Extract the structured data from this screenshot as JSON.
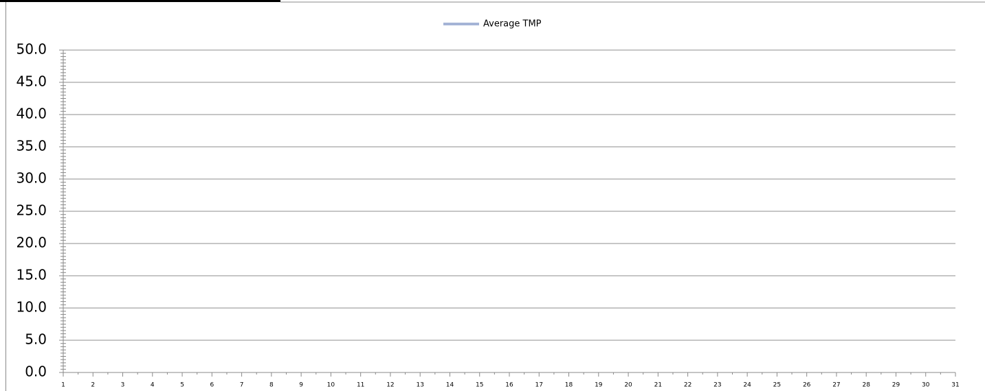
{
  "chart_data": {
    "type": "line",
    "categories": [
      "1",
      "2",
      "3",
      "4",
      "5",
      "6",
      "7",
      "8",
      "9",
      "10",
      "11",
      "12",
      "13",
      "14",
      "15",
      "16",
      "17",
      "18",
      "19",
      "20",
      "21",
      "22",
      "23",
      "24",
      "25",
      "26",
      "27",
      "28",
      "29",
      "30",
      "31"
    ],
    "series": [
      {
        "name": "Average TMP",
        "color": "#a4b4d6",
        "values": [
          null,
          null,
          null,
          null,
          null,
          null,
          null,
          null,
          null,
          null,
          null,
          null,
          null,
          null,
          null,
          null,
          null,
          null,
          null,
          null,
          null,
          null,
          null,
          null,
          null,
          null,
          null,
          null,
          null,
          null,
          null
        ]
      }
    ],
    "ylim": [
      0,
      50
    ],
    "yticks": [
      {
        "value": 0,
        "label": "0.0"
      },
      {
        "value": 5,
        "label": "5.0"
      },
      {
        "value": 10,
        "label": "10.0"
      },
      {
        "value": 15,
        "label": "15.0"
      },
      {
        "value": 20,
        "label": "20.0"
      },
      {
        "value": 25,
        "label": "25.0"
      },
      {
        "value": 30,
        "label": "30.0"
      },
      {
        "value": 35,
        "label": "35.0"
      },
      {
        "value": 40,
        "label": "40.0"
      },
      {
        "value": 45,
        "label": "45.0"
      },
      {
        "value": 50,
        "label": "50.0"
      }
    ],
    "grid": true,
    "legend": "top"
  }
}
